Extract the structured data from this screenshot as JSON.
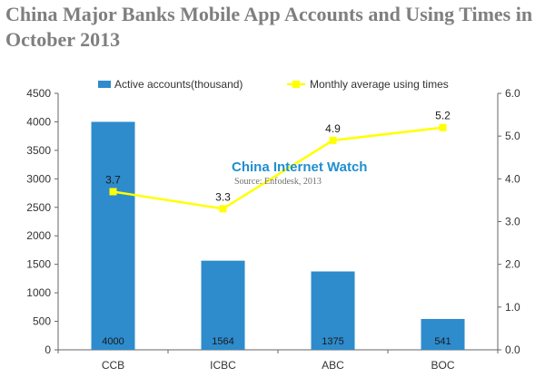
{
  "title": "China Major Banks Mobile App Accounts and Using Times in October 2013",
  "watermark": {
    "brand": "China Internet Watch",
    "source": "Source: Enfodesk, 2013"
  },
  "colors": {
    "bar": "#2e8bcc",
    "line": "#ffff00",
    "title": "#7f7f7f",
    "axis": "#666666"
  },
  "chart_data": {
    "type": "bar",
    "categories": [
      "CCB",
      "ICBC",
      "ABC",
      "BOC"
    ],
    "series": [
      {
        "name": "Active accounts(thousand)",
        "type": "bar",
        "axis": "left",
        "values": [
          4000,
          1564,
          1375,
          541
        ],
        "labels": [
          "4000",
          "1564",
          "1375",
          "541"
        ]
      },
      {
        "name": "Monthly average using times",
        "type": "line",
        "axis": "right",
        "values": [
          3.7,
          3.3,
          4.9,
          5.2
        ],
        "labels": [
          "3.7",
          "3.3",
          "4.9",
          "5.2"
        ]
      }
    ],
    "y_left": {
      "min": 0,
      "max": 4500,
      "ticks": [
        "0",
        "500",
        "1000",
        "1500",
        "2000",
        "2500",
        "3000",
        "3500",
        "4000",
        "4500"
      ]
    },
    "y_right": {
      "min": 0,
      "max": 6,
      "ticks": [
        "0.0",
        "1.0",
        "2.0",
        "3.0",
        "4.0",
        "5.0",
        "6.0"
      ]
    },
    "legend": "top",
    "grid": false
  }
}
